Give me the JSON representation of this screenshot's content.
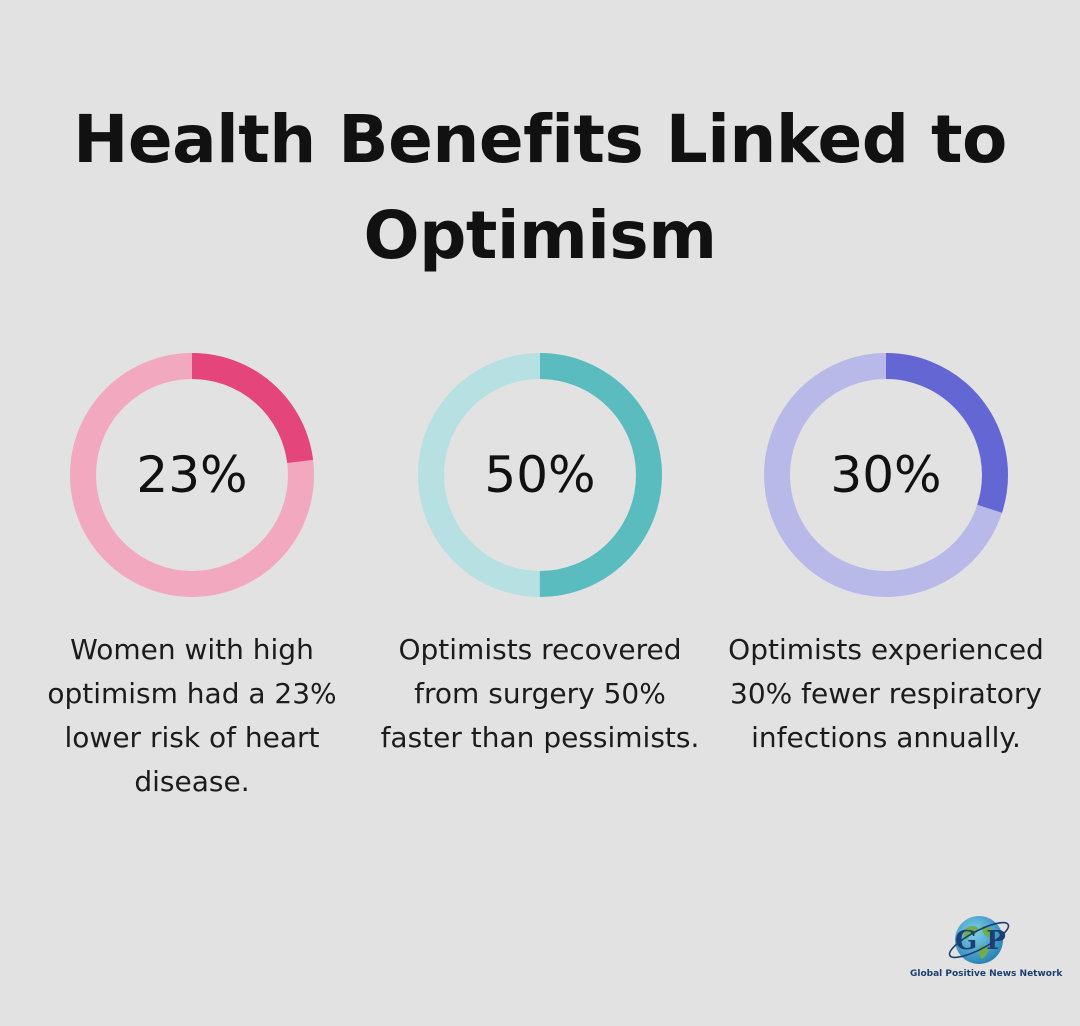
{
  "title": "Health Benefits Linked to Optimism",
  "colors": {
    "background": "#e1e2e1",
    "pink_accent": "#e4457a",
    "pink_track": "#f2a9c0",
    "teal_accent": "#5bbcbf",
    "teal_track": "#b7e0e2",
    "purple_accent": "#6467d3",
    "purple_track": "#b8b9e9"
  },
  "stats": [
    {
      "value": "23%",
      "percent": 23,
      "description": "Women with high optimism had a 23% lower risk of heart disease.",
      "accent": "#e4457a",
      "track": "#f2a9c0"
    },
    {
      "value": "50%",
      "percent": 50,
      "description": "Optimists recovered from surgery 50% faster than pessimists.",
      "accent": "#5bbcbf",
      "track": "#b7e0e2"
    },
    {
      "value": "30%",
      "percent": 30,
      "description": "Optimists experienced 30% fewer respiratory infections annually.",
      "accent": "#6467d3",
      "track": "#b8b9e9"
    }
  ],
  "logo": {
    "letters": "G P",
    "text": "Global Positive News Network",
    "icon": "globe-logo-icon"
  }
}
